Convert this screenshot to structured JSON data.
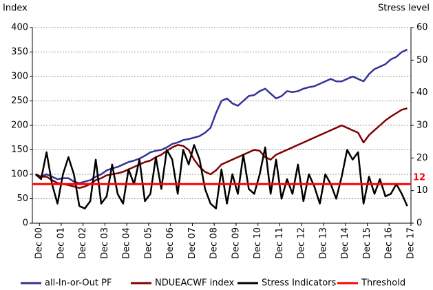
{
  "chart_data": {
    "type": "line",
    "y_label": "Index",
    "y2_label": "Stress level",
    "x": [
      2000.75,
      2001,
      2001.25,
      2001.5,
      2001.75,
      2002,
      2002.25,
      2002.5,
      2002.75,
      2003,
      2003.25,
      2003.5,
      2003.75,
      2004,
      2004.25,
      2004.5,
      2004.75,
      2005,
      2005.25,
      2005.5,
      2005.75,
      2006,
      2006.25,
      2006.5,
      2006.75,
      2007,
      2007.25,
      2007.5,
      2007.75,
      2008,
      2008.25,
      2008.5,
      2008.75,
      2009,
      2009.25,
      2009.5,
      2009.75,
      2010,
      2010.25,
      2010.5,
      2010.75,
      2011,
      2011.25,
      2011.5,
      2011.75,
      2012,
      2012.25,
      2012.5,
      2012.75,
      2013,
      2013.25,
      2013.5,
      2013.75,
      2014,
      2014.25,
      2014.5,
      2014.75,
      2015,
      2015.25,
      2015.5,
      2015.75,
      2016,
      2016.25,
      2016.5,
      2016.75,
      2017,
      2017.25,
      2017.5,
      2017.75
    ],
    "series": [
      {
        "name": "all-In-or-Out PF",
        "color": "#333399",
        "values": [
          100,
          95,
          100,
          95,
          90,
          92,
          92,
          85,
          82,
          85,
          88,
          95,
          100,
          108,
          112,
          115,
          120,
          125,
          128,
          132,
          138,
          145,
          148,
          150,
          155,
          162,
          165,
          170,
          172,
          175,
          178,
          185,
          195,
          225,
          250,
          255,
          245,
          240,
          250,
          260,
          262,
          270,
          275,
          265,
          255,
          260,
          270,
          268,
          270,
          275,
          278,
          280,
          285,
          290,
          295,
          290,
          290,
          295,
          300,
          295,
          290,
          305,
          315,
          320,
          325,
          335,
          340,
          350,
          355
        ]
      },
      {
        "name": "NDUEACWF index",
        "color": "#800000",
        "values": [
          100,
          95,
          95,
          88,
          82,
          80,
          78,
          75,
          72,
          75,
          80,
          88,
          92,
          98,
          100,
          102,
          105,
          110,
          115,
          120,
          125,
          128,
          135,
          140,
          148,
          155,
          160,
          158,
          150,
          130,
          115,
          105,
          100,
          108,
          120,
          125,
          130,
          135,
          140,
          145,
          150,
          148,
          135,
          130,
          140,
          145,
          150,
          155,
          160,
          165,
          170,
          175,
          180,
          185,
          190,
          195,
          200,
          195,
          190,
          185,
          165,
          180,
          190,
          200,
          210,
          218,
          225,
          232,
          235
        ]
      },
      {
        "name": "Stress Indicators",
        "color": "#000000",
        "axis": "y2",
        "values": [
          15,
          13.5,
          21.75,
          12,
          6,
          15,
          20.25,
          15,
          5.25,
          4.5,
          6.75,
          19.5,
          6,
          8.25,
          18,
          9,
          6,
          16.5,
          12,
          19.5,
          6.75,
          9,
          20.25,
          10.5,
          22.5,
          19.5,
          9,
          22.5,
          18,
          24,
          19.5,
          10.5,
          6,
          4.5,
          16.5,
          6,
          15,
          9,
          21,
          10.5,
          9,
          15,
          23.25,
          9,
          19.5,
          7.5,
          13.5,
          9,
          18,
          6.75,
          15,
          11.25,
          6,
          15,
          12,
          7.5,
          14.25,
          22.5,
          19.5,
          21.75,
          6,
          14.25,
          9,
          13.5,
          8.25,
          9,
          12,
          9,
          5.25
        ]
      }
    ],
    "threshold": {
      "name": "Threshold",
      "value": 12,
      "color": "#ff0000",
      "axis": "y2"
    },
    "xlim": [
      2000.6,
      2017.92
    ],
    "xticks": [
      {
        "value": 2000.92,
        "label": "Dec 00"
      },
      {
        "value": 2001.92,
        "label": "Dec 01"
      },
      {
        "value": 2002.92,
        "label": "Dec 02"
      },
      {
        "value": 2003.92,
        "label": "Dec 03"
      },
      {
        "value": 2004.92,
        "label": "Dec 04"
      },
      {
        "value": 2005.92,
        "label": "Dec 05"
      },
      {
        "value": 2006.92,
        "label": "Dec 06"
      },
      {
        "value": 2007.92,
        "label": "Dec 07"
      },
      {
        "value": 2008.92,
        "label": "Dec 08"
      },
      {
        "value": 2009.92,
        "label": "Dec 09"
      },
      {
        "value": 2010.92,
        "label": "Dec 10"
      },
      {
        "value": 2011.92,
        "label": "Dec 11"
      },
      {
        "value": 2012.92,
        "label": "Dec 12"
      },
      {
        "value": 2013.92,
        "label": "Dec 13"
      },
      {
        "value": 2014.92,
        "label": "Dec 14"
      },
      {
        "value": 2015.92,
        "label": "Dec 15"
      },
      {
        "value": 2016.92,
        "label": "Dec 16"
      },
      {
        "value": 2017.92,
        "label": "Dec 17"
      }
    ],
    "ylim": [
      0,
      400
    ],
    "yticks": [
      0,
      50,
      100,
      150,
      200,
      250,
      300,
      350,
      400
    ],
    "y2lim": [
      0,
      60
    ],
    "y2ticks": [
      0,
      10,
      20,
      30,
      40,
      50,
      60
    ],
    "grid": true
  }
}
